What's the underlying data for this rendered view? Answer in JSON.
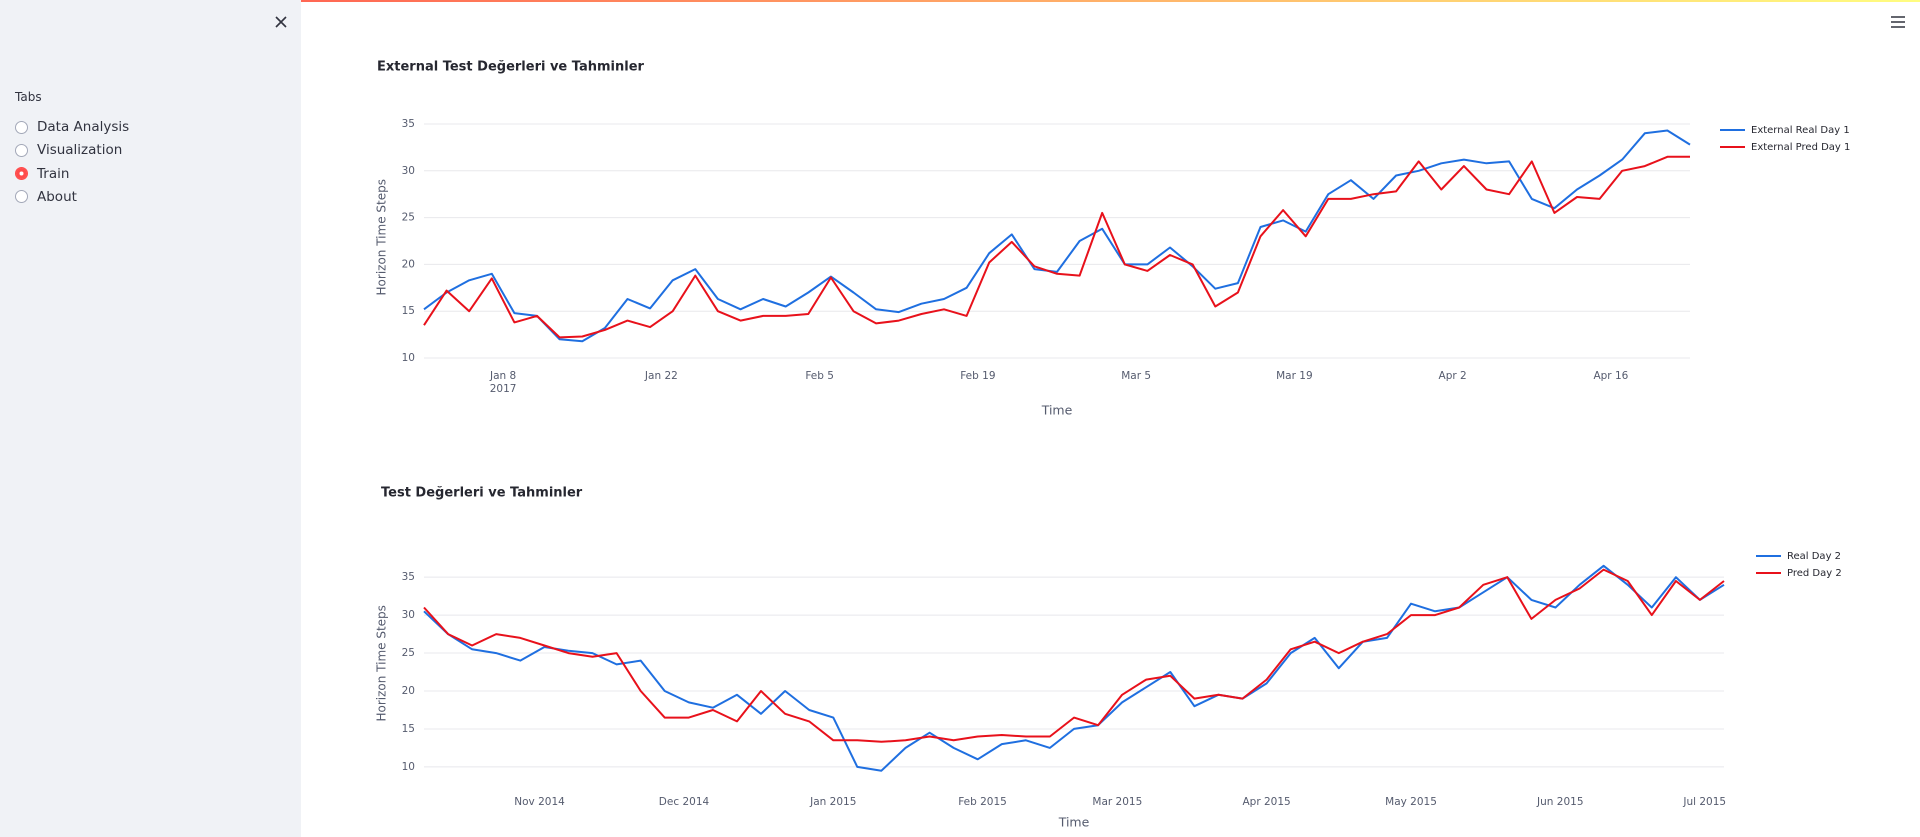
{
  "sidebar": {
    "label": "Tabs",
    "options": [
      "Data Analysis",
      "Visualization",
      "Train",
      "About"
    ],
    "selected": 2
  },
  "chart_data": [
    {
      "type": "line",
      "title": "External Test Değerleri ve Tahminler",
      "xlabel": "Time",
      "ylabel": "Horizon Time Steps",
      "x": [
        "2017-01-01",
        "2017-01-03",
        "2017-01-05",
        "2017-01-07",
        "2017-01-09",
        "2017-01-11",
        "2017-01-13",
        "2017-01-15",
        "2017-01-17",
        "2017-01-19",
        "2017-01-21",
        "2017-01-23",
        "2017-01-25",
        "2017-01-27",
        "2017-01-29",
        "2017-01-31",
        "2017-02-02",
        "2017-02-04",
        "2017-02-06",
        "2017-02-08",
        "2017-02-10",
        "2017-02-12",
        "2017-02-14",
        "2017-02-16",
        "2017-02-18",
        "2017-02-20",
        "2017-02-22",
        "2017-02-24",
        "2017-02-26",
        "2017-02-28",
        "2017-03-02",
        "2017-03-04",
        "2017-03-06",
        "2017-03-08",
        "2017-03-10",
        "2017-03-12",
        "2017-03-14",
        "2017-03-16",
        "2017-03-18",
        "2017-03-20",
        "2017-03-22",
        "2017-03-24",
        "2017-03-26",
        "2017-03-28",
        "2017-03-30",
        "2017-04-01",
        "2017-04-03",
        "2017-04-05",
        "2017-04-07",
        "2017-04-09",
        "2017-04-11",
        "2017-04-13",
        "2017-04-15",
        "2017-04-17",
        "2017-04-19",
        "2017-04-21",
        "2017-04-23"
      ],
      "series": [
        {
          "name": "External Real Day 1",
          "color": "#1f6fe0",
          "values": [
            15.2,
            17,
            18.3,
            19,
            14.8,
            14.5,
            12,
            11.8,
            13.2,
            16.3,
            15.3,
            18.3,
            19.5,
            16.3,
            15.2,
            16.3,
            15.5,
            17,
            18.7,
            17,
            15.2,
            14.9,
            15.8,
            16.3,
            17.5,
            21.2,
            23.2,
            19.5,
            19.2,
            22.5,
            23.8,
            20,
            20,
            21.8,
            19.8,
            17.4,
            18,
            24,
            24.7,
            23.5,
            27.5,
            29,
            27,
            29.5,
            30,
            30.8,
            31.2,
            30.8,
            31,
            27,
            26,
            28,
            29.5,
            31.2,
            34,
            34.3,
            32.8
          ]
        },
        {
          "name": "External Pred Day 1",
          "color": "#e8111b",
          "values": [
            13.5,
            17.2,
            15,
            18.5,
            13.8,
            14.5,
            12.2,
            12.3,
            13,
            14,
            13.3,
            15,
            18.8,
            15,
            14,
            14.5,
            14.5,
            14.7,
            18.6,
            15,
            13.7,
            14,
            14.7,
            15.2,
            14.5,
            20.2,
            22.4,
            19.8,
            19,
            18.8,
            25.5,
            20,
            19.3,
            21,
            20,
            15.5,
            17,
            23,
            25.8,
            23,
            27,
            27,
            27.5,
            27.8,
            31,
            28,
            30.5,
            28,
            27.5,
            31,
            25.5,
            27.2,
            27,
            30,
            30.5,
            31.5,
            31.5
          ]
        }
      ],
      "xlim": [
        "2017-01-01",
        "2017-04-23"
      ],
      "xticks": [
        {
          "value": "2017-01-08",
          "label": "Jan 8",
          "sublabel": "2017"
        },
        {
          "value": "2017-01-22",
          "label": "Jan 22"
        },
        {
          "value": "2017-02-05",
          "label": "Feb 5"
        },
        {
          "value": "2017-02-19",
          "label": "Feb 19"
        },
        {
          "value": "2017-03-05",
          "label": "Mar 5"
        },
        {
          "value": "2017-03-19",
          "label": "Mar 19"
        },
        {
          "value": "2017-04-02",
          "label": "Apr 2"
        },
        {
          "value": "2017-04-16",
          "label": "Apr 16"
        }
      ],
      "ylim": [
        10,
        35.8
      ],
      "yticks": [
        10,
        15,
        20,
        25,
        30,
        35
      ],
      "grid": true,
      "legend": "right"
    },
    {
      "type": "line",
      "title": "Test Değerleri ve Tahminler",
      "xlabel": "Time",
      "ylabel": "Horizon Time Steps",
      "x": [
        "2014-10-08",
        "2014-10-13",
        "2014-10-18",
        "2014-10-23",
        "2014-10-28",
        "2014-11-02",
        "2014-11-07",
        "2014-11-12",
        "2014-11-17",
        "2014-11-22",
        "2014-11-27",
        "2014-12-02",
        "2014-12-07",
        "2014-12-12",
        "2014-12-17",
        "2014-12-22",
        "2014-12-27",
        "2015-01-01",
        "2015-01-06",
        "2015-01-11",
        "2015-01-16",
        "2015-01-21",
        "2015-01-26",
        "2015-01-31",
        "2015-02-05",
        "2015-02-10",
        "2015-02-15",
        "2015-02-20",
        "2015-02-25",
        "2015-03-02",
        "2015-03-07",
        "2015-03-12",
        "2015-03-17",
        "2015-03-22",
        "2015-03-27",
        "2015-04-01",
        "2015-04-06",
        "2015-04-11",
        "2015-04-16",
        "2015-04-21",
        "2015-04-26",
        "2015-05-01",
        "2015-05-06",
        "2015-05-11",
        "2015-05-16",
        "2015-05-21",
        "2015-05-26",
        "2015-05-31",
        "2015-06-05",
        "2015-06-10",
        "2015-06-15",
        "2015-06-20",
        "2015-06-25",
        "2015-06-30",
        "2015-07-05"
      ],
      "series": [
        {
          "name": "Real Day 2",
          "color": "#1f6fe0",
          "values": [
            30.5,
            27.5,
            25.5,
            25,
            24,
            25.8,
            25.3,
            25,
            23.5,
            24,
            20,
            18.5,
            17.8,
            19.5,
            17,
            20,
            17.5,
            16.5,
            10,
            9.5,
            12.5,
            14.5,
            12.5,
            11,
            13,
            13.5,
            12.5,
            15,
            15.5,
            18.5,
            20.5,
            22.5,
            18,
            19.5,
            19,
            21,
            25,
            27,
            23,
            26.5,
            27,
            31.5,
            30.5,
            31,
            33,
            35,
            32,
            31,
            34,
            36.5,
            34,
            31,
            35,
            32,
            34
          ]
        },
        {
          "name": "Pred Day 2",
          "color": "#e8111b",
          "values": [
            31,
            27.5,
            26,
            27.5,
            27,
            26,
            25,
            24.5,
            25,
            20,
            16.5,
            16.5,
            17.5,
            16,
            20,
            17,
            16,
            13.5,
            13.5,
            13.3,
            13.5,
            14,
            13.5,
            14,
            14.2,
            14,
            14,
            16.5,
            15.5,
            19.5,
            21.5,
            22,
            19,
            19.5,
            19,
            21.5,
            25.5,
            26.5,
            25,
            26.5,
            27.5,
            30,
            30,
            31,
            34,
            35,
            29.5,
            32,
            33.5,
            36,
            34.5,
            30,
            34.5,
            32,
            34.5
          ]
        }
      ],
      "xlim": [
        "2014-10-08",
        "2015-07-05"
      ],
      "xticks": [
        {
          "value": "2014-11-01",
          "label": "Nov 2014"
        },
        {
          "value": "2014-12-01",
          "label": "Dec 2014"
        },
        {
          "value": "2015-01-01",
          "label": "Jan 2015"
        },
        {
          "value": "2015-02-01",
          "label": "Feb 2015"
        },
        {
          "value": "2015-03-01",
          "label": "Mar 2015"
        },
        {
          "value": "2015-04-01",
          "label": "Apr 2015"
        },
        {
          "value": "2015-05-01",
          "label": "May 2015"
        },
        {
          "value": "2015-06-01",
          "label": "Jun 2015"
        },
        {
          "value": "2015-07-01",
          "label": "Jul 2015"
        }
      ],
      "ylim": [
        8.8,
        38.5
      ],
      "yticks": [
        10,
        15,
        20,
        25,
        30,
        35
      ],
      "grid": true,
      "legend": "right"
    }
  ]
}
